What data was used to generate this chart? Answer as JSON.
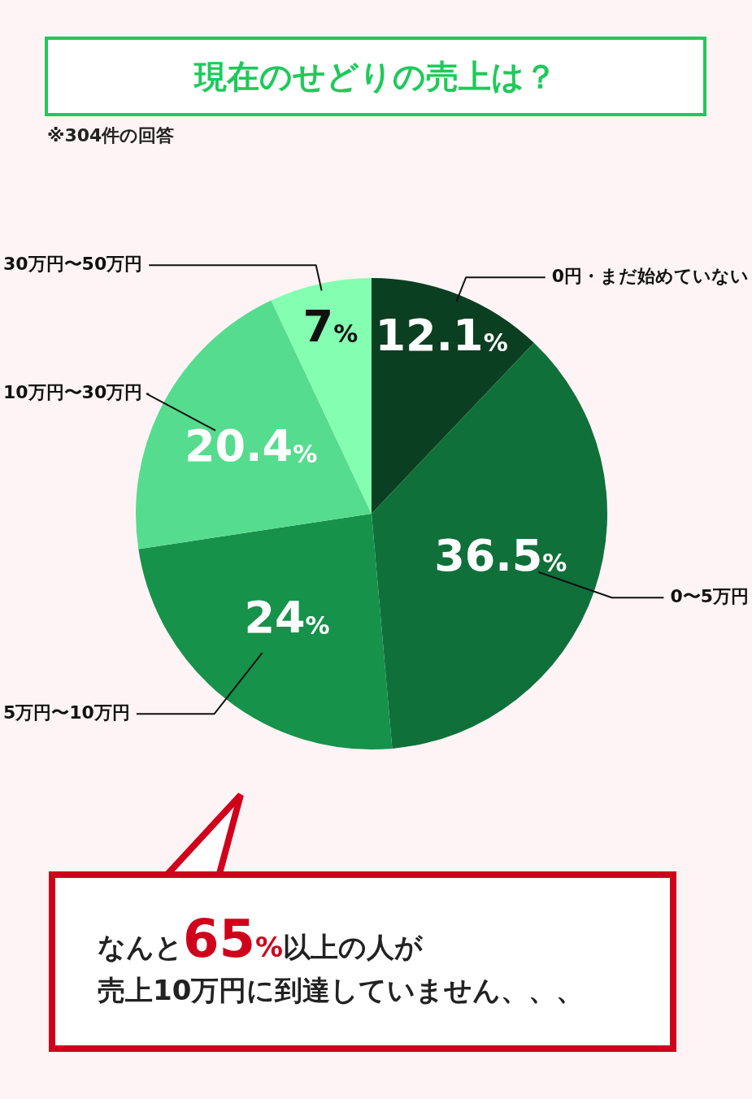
{
  "chart_data": {
    "type": "pie",
    "title": "現在のせどりの売上は？",
    "subtitle": "※304件の回答",
    "categories": [
      "0円・まだ始めていない",
      "0〜5万円",
      "5万円〜10万円",
      "10万円〜30万円",
      "30万円〜50万円"
    ],
    "values": [
      12.1,
      36.5,
      24,
      20.4,
      7
    ],
    "colors": [
      "#0b3f21",
      "#10703a",
      "#16924a",
      "#56dc8e",
      "#84ffb2"
    ],
    "value_labels": [
      "12.1%",
      "36.5%",
      "24%",
      "20.4%",
      "7%"
    ],
    "legend": false,
    "annotations": [
      "なんと65%以上の人が",
      "売上10万円に到達していません、、、"
    ]
  }
}
